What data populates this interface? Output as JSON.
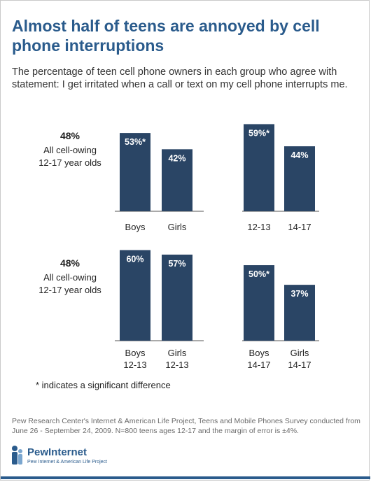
{
  "title": "Almost half of teens are annoyed by cell phone interruptions",
  "subtitle": "The percentage of teen cell phone owners in each group who agree with statement: I get irritated when a call or text on my cell phone interrupts me.",
  "note": "* indicates a significant difference",
  "source": "Pew Research Center's Internet & American Life Project, Teens and Mobile Phones Survey conducted from June 26 - September 24, 2009. N=800 teens ages 12-17 and the margin of error is ±4%.",
  "logo": {
    "name": "PewInternet",
    "tagline": "Pew Internet & American Life Project"
  },
  "colors": {
    "bar": "#2a4565",
    "title": "#2a5b8c",
    "axis": "#555555"
  },
  "chart_data": [
    {
      "type": "bar",
      "overall": {
        "value": "48%",
        "label_line1": "All cell-owing",
        "label_line2": "12-17 year olds"
      },
      "categories": [
        [
          "Boys"
        ],
        [
          "Girls"
        ],
        [
          "12-13"
        ],
        [
          "14-17"
        ]
      ],
      "values": [
        53,
        42,
        59,
        44
      ],
      "labels": [
        "53%*",
        "42%",
        "59%*",
        "44%"
      ],
      "ylim": [
        0,
        63
      ]
    },
    {
      "type": "bar",
      "overall": {
        "value": "48%",
        "label_line1": "All cell-owing",
        "label_line2": "12-17 year olds"
      },
      "categories": [
        [
          "Boys",
          "12-13"
        ],
        [
          "Girls",
          "12-13"
        ],
        [
          "Boys",
          "14-17"
        ],
        [
          "Girls",
          "14-17"
        ]
      ],
      "values": [
        60,
        57,
        50,
        37
      ],
      "labels": [
        "60%",
        "57%",
        "50%*",
        "37%"
      ],
      "ylim": [
        0,
        63
      ]
    }
  ]
}
